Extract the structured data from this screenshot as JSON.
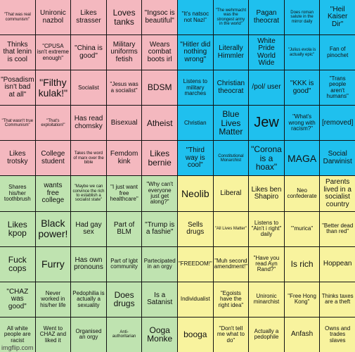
{
  "watermark": "imgflip.com",
  "colors": {
    "red": "#f4b8bf",
    "blue": "#1fc0ee",
    "green": "#bfe3b0",
    "yellow": "#f8f39e"
  },
  "rows": [
    [
      {
        "text": "\"That was real communism\"",
        "c": "red",
        "s": "xs"
      },
      {
        "text": "Unironic nazbol",
        "c": "red",
        "s": "md"
      },
      {
        "text": "Likes strasser",
        "c": "red",
        "s": "md"
      },
      {
        "text": "Loves tanks",
        "c": "red",
        "s": "lg"
      },
      {
        "text": "\"Ingsoc is beautiful\"",
        "c": "red",
        "s": "md"
      },
      {
        "text": "\"It's natsoc not Nazi\"",
        "c": "blue",
        "s": "sm"
      },
      {
        "text": "\"The wehrmacht was the strongest army in the world\"",
        "c": "blue",
        "s": "xs"
      },
      {
        "text": "Pagan theocrat",
        "c": "blue",
        "s": "md"
      },
      {
        "text": "Does roman salute in the mirror daily",
        "c": "blue",
        "s": "xs"
      },
      {
        "text": "\"Heil Kaiser Dir\"",
        "c": "blue",
        "s": "md"
      }
    ],
    [
      {
        "text": "Thinks that lenin is cool",
        "c": "red",
        "s": "md"
      },
      {
        "text": "\"CPUSA isn't extreme enough\"",
        "c": "red",
        "s": "sm"
      },
      {
        "text": "\"China is good\"",
        "c": "red",
        "s": "md"
      },
      {
        "text": "Military uniforms fetish",
        "c": "red",
        "s": "md"
      },
      {
        "text": "Wears combat boots irl",
        "c": "red",
        "s": "md"
      },
      {
        "text": "\"Hitler did nothing wrong\"",
        "c": "blue",
        "s": "md"
      },
      {
        "text": "Literally Himmler",
        "c": "blue",
        "s": "md"
      },
      {
        "text": "White Pride World Wide",
        "c": "blue",
        "s": "md"
      },
      {
        "text": "\"Julius evola is actually epic\"",
        "c": "blue",
        "s": "xs"
      },
      {
        "text": "Fan of pinochet",
        "c": "blue",
        "s": "sm"
      }
    ],
    [
      {
        "text": "\"Posadism isn't bad at all\"",
        "c": "red",
        "s": "md"
      },
      {
        "text": "\"Filthy kulak!\"",
        "c": "red",
        "s": "xl"
      },
      {
        "text": "Socialist",
        "c": "red",
        "s": "sm"
      },
      {
        "text": "\"Jesus was a socialist\"",
        "c": "red",
        "s": "sm"
      },
      {
        "text": "BDSM",
        "c": "red",
        "s": "lg"
      },
      {
        "text": "Listens to military marches",
        "c": "blue",
        "s": "sm"
      },
      {
        "text": "Christian theocrat",
        "c": "blue",
        "s": "md"
      },
      {
        "text": "/pol/ user",
        "c": "blue",
        "s": "md"
      },
      {
        "text": "\"KKK is good\"",
        "c": "blue",
        "s": "md"
      },
      {
        "text": "\"Trans people aren't humans\"",
        "c": "blue",
        "s": "sm"
      }
    ],
    [
      {
        "text": "\"That wasn't true Communism\"",
        "c": "red",
        "s": "xs"
      },
      {
        "text": "\"That's exploitation!\"",
        "c": "red",
        "s": "xs"
      },
      {
        "text": "Has read chomsky",
        "c": "red",
        "s": "md"
      },
      {
        "text": "Bisexual",
        "c": "red",
        "s": "md"
      },
      {
        "text": "Atheist",
        "c": "red",
        "s": "lg"
      },
      {
        "text": "Christian",
        "c": "blue",
        "s": "sm"
      },
      {
        "text": "Blue Lives Matter",
        "c": "blue",
        "s": "lg"
      },
      {
        "text": "Jew",
        "c": "blue",
        "s": "xxl"
      },
      {
        "text": "\"What's wrong with racism?\"",
        "c": "blue",
        "s": "sm"
      },
      {
        "text": "[removed]",
        "c": "blue",
        "s": "md"
      }
    ],
    [
      {
        "text": "Likes trotsky",
        "c": "red",
        "s": "md"
      },
      {
        "text": "College student",
        "c": "red",
        "s": "md"
      },
      {
        "text": "Takes the word of marx over the bible",
        "c": "red",
        "s": "xs"
      },
      {
        "text": "Femdom kink",
        "c": "red",
        "s": "md"
      },
      {
        "text": "Likes bernie",
        "c": "red",
        "s": "lg"
      },
      {
        "text": "\"Third way is cool\"",
        "c": "blue",
        "s": "md"
      },
      {
        "text": "Constitutional Monarchist",
        "c": "blue",
        "s": "xs"
      },
      {
        "text": "\"Corona is a hoax\"",
        "c": "blue",
        "s": "lg"
      },
      {
        "text": "MAGA",
        "c": "blue",
        "s": "xl"
      },
      {
        "text": "Social Darwinist",
        "c": "blue",
        "s": "md"
      }
    ],
    [
      {
        "text": "Shares his/her toothbrush",
        "c": "green",
        "s": "sm"
      },
      {
        "text": "wants free college",
        "c": "green",
        "s": "md"
      },
      {
        "text": "\"Maybe we can convince the rich to establish a socialist state\"",
        "c": "green",
        "s": "xs"
      },
      {
        "text": "\"I just want free healthcare\"",
        "c": "green",
        "s": "sm"
      },
      {
        "text": "\"Why can't everyone just get along?\"",
        "c": "green",
        "s": "sm"
      },
      {
        "text": "Neolib",
        "c": "yellow",
        "s": "xl"
      },
      {
        "text": "Liberal",
        "c": "yellow",
        "s": "md"
      },
      {
        "text": "Likes ben Shapiro",
        "c": "yellow",
        "s": "md"
      },
      {
        "text": "Neo confederate",
        "c": "yellow",
        "s": "sm"
      },
      {
        "text": "Parents lived in a socialist country",
        "c": "yellow",
        "s": "md"
      }
    ],
    [
      {
        "text": "Likes kpop",
        "c": "green",
        "s": "lg"
      },
      {
        "text": "Black power!",
        "c": "green",
        "s": "xl"
      },
      {
        "text": "Had gay sex",
        "c": "green",
        "s": "md"
      },
      {
        "text": "Part of BLM",
        "c": "green",
        "s": "md"
      },
      {
        "text": "\"Trump is a fashie\"",
        "c": "green",
        "s": "md"
      },
      {
        "text": "Sells drugs",
        "c": "yellow",
        "s": "md"
      },
      {
        "text": "\"All Lives Matter\"",
        "c": "yellow",
        "s": "xs"
      },
      {
        "text": "Listens to \"Ain't i right\" daily",
        "c": "yellow",
        "s": "sm"
      },
      {
        "text": "\"'murica\"",
        "c": "yellow",
        "s": "sm"
      },
      {
        "text": "\"Better dead than red\"",
        "c": "yellow",
        "s": "sm"
      }
    ],
    [
      {
        "text": "Fuck cops",
        "c": "green",
        "s": "lg"
      },
      {
        "text": "Furry",
        "c": "green",
        "s": "xl"
      },
      {
        "text": "Has own pronouns",
        "c": "green",
        "s": "md"
      },
      {
        "text": "Part of lgbt community",
        "c": "green",
        "s": "sm"
      },
      {
        "text": "Partecipated in an orgy",
        "c": "green",
        "s": "sm"
      },
      {
        "text": "\"FREEDOM!\"",
        "c": "yellow",
        "s": "sm"
      },
      {
        "text": "\"Muh second amendment!\"",
        "c": "yellow",
        "s": "sm"
      },
      {
        "text": "\"Have you read Ayn Rand?\"",
        "c": "yellow",
        "s": "sm"
      },
      {
        "text": "Is rich",
        "c": "yellow",
        "s": "lg"
      },
      {
        "text": "Hoppean",
        "c": "yellow",
        "s": "md"
      }
    ],
    [
      {
        "text": "\"CHAZ was good\"",
        "c": "green",
        "s": "md"
      },
      {
        "text": "Never worked in his/her life",
        "c": "green",
        "s": "sm"
      },
      {
        "text": "Pedophilia is actually a sexuality",
        "c": "green",
        "s": "sm"
      },
      {
        "text": "Does drugs",
        "c": "green",
        "s": "lg"
      },
      {
        "text": "Is a Satanist",
        "c": "green",
        "s": "md"
      },
      {
        "text": "Individualist",
        "c": "yellow",
        "s": "sm"
      },
      {
        "text": "\"Egoists have the right idea\"",
        "c": "yellow",
        "s": "sm"
      },
      {
        "text": "Unironic minarchist",
        "c": "yellow",
        "s": "sm"
      },
      {
        "text": "\"Free Hong Kong\"",
        "c": "yellow",
        "s": "sm"
      },
      {
        "text": "Thinks taxes are a theft",
        "c": "yellow",
        "s": "sm"
      }
    ],
    [
      {
        "text": "All white people are racist",
        "c": "green",
        "s": "sm"
      },
      {
        "text": "Went to CHAZ and liked it",
        "c": "green",
        "s": "sm"
      },
      {
        "text": "Organised an orgy",
        "c": "green",
        "s": "sm"
      },
      {
        "text": "Anti-authoritarian",
        "c": "green",
        "s": "xs"
      },
      {
        "text": "Ooga Monke",
        "c": "green",
        "s": "lg"
      },
      {
        "text": "booga",
        "c": "yellow",
        "s": "lg"
      },
      {
        "text": "\"Don't tell me what to do\"",
        "c": "yellow",
        "s": "sm"
      },
      {
        "text": "Actually a pedophile",
        "c": "yellow",
        "s": "sm"
      },
      {
        "text": "Anfash",
        "c": "yellow",
        "s": "md"
      },
      {
        "text": "Owns and trades slaves",
        "c": "yellow",
        "s": "sm"
      }
    ]
  ]
}
